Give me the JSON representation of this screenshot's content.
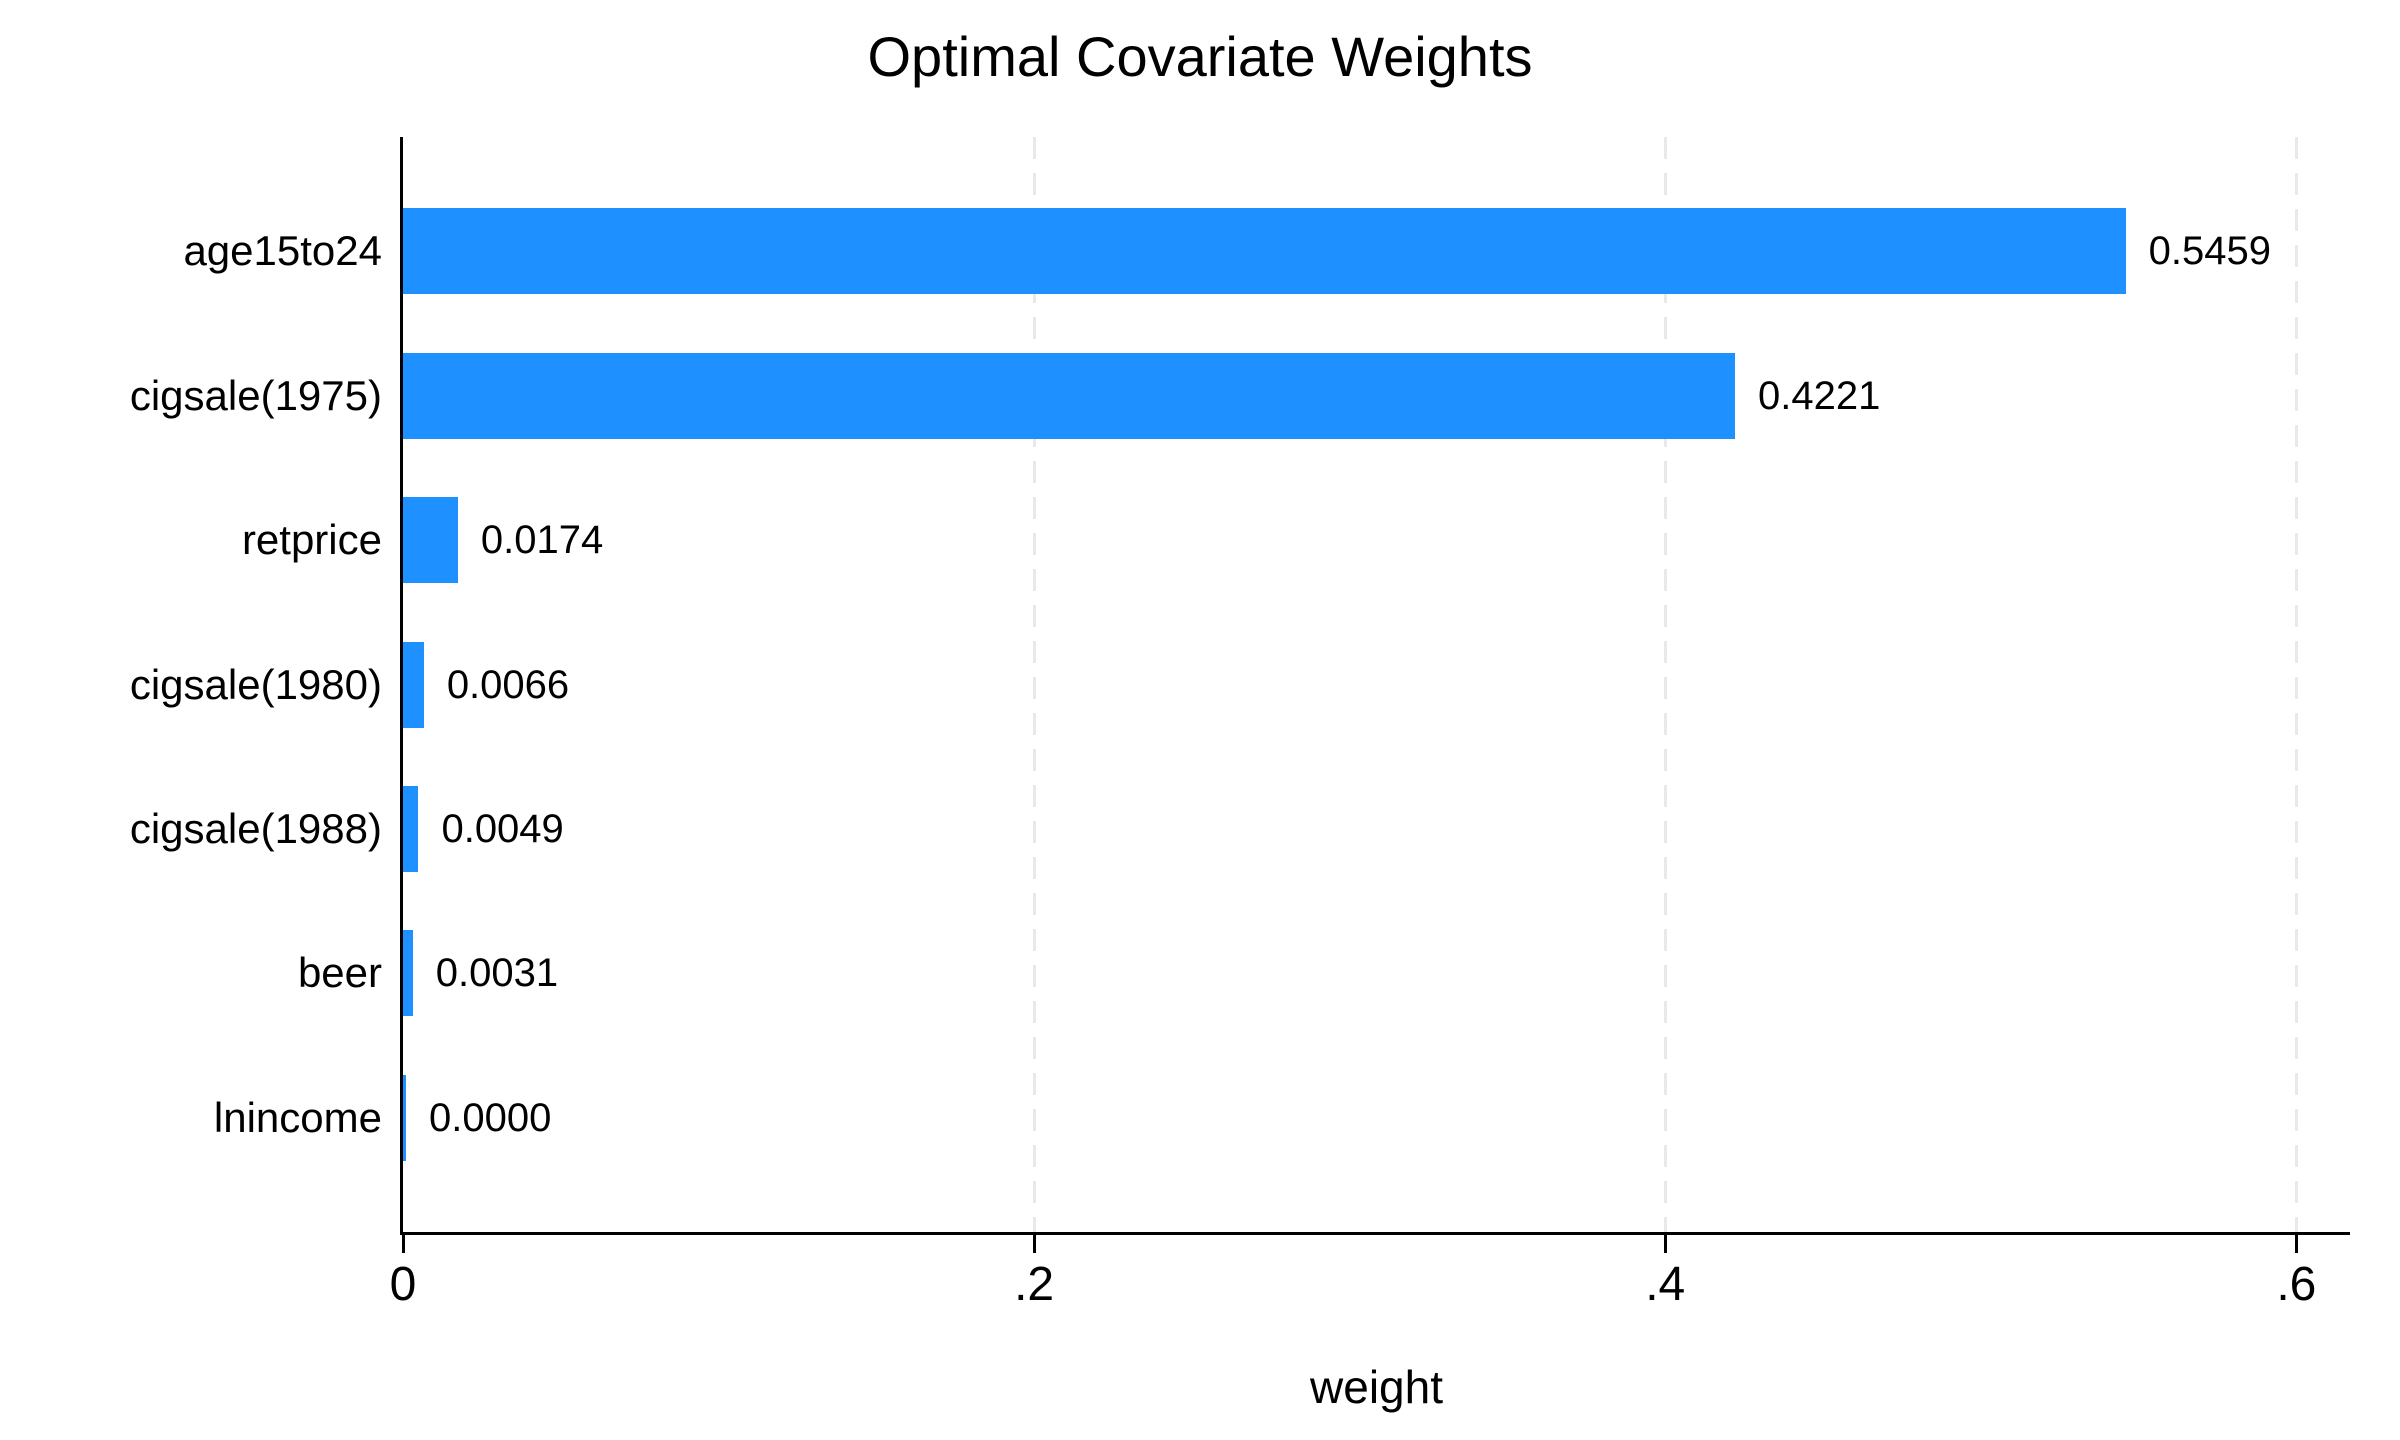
{
  "chart_data": {
    "type": "bar",
    "orientation": "horizontal",
    "title": "Optimal Covariate Weights",
    "xlabel": "weight",
    "categories": [
      "age15to24",
      "cigsale(1975)",
      "retprice",
      "cigsale(1980)",
      "cigsale(1988)",
      "beer",
      "lnincome"
    ],
    "values": [
      0.5459,
      0.4221,
      0.0174,
      0.0066,
      0.0049,
      0.0031,
      0.0
    ],
    "value_labels": [
      "0.5459",
      "0.4221",
      "0.0174",
      "0.0066",
      "0.0049",
      "0.0031",
      "0.0000"
    ],
    "xticks": {
      "values": [
        0,
        0.2,
        0.4,
        0.6
      ],
      "labels": [
        "0",
        ".2",
        ".4",
        ".6"
      ]
    },
    "xlim": [
      0,
      0.617
    ],
    "grid": true,
    "gridline_style": "dashed",
    "legend": "none",
    "colors": {
      "bar": "#1E90FF",
      "axis": "#000000",
      "gridline": "#E9E9E9",
      "text": "#000000",
      "background": "#FFFFFF"
    }
  }
}
